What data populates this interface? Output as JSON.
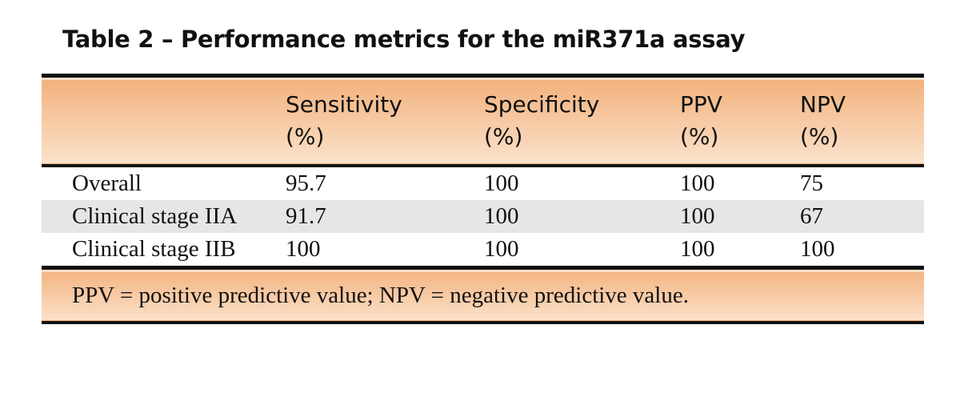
{
  "title": "Table 2 – Performance metrics for the miR371a assay",
  "table": {
    "header": [
      "Sensitivity (%)",
      "Specificity (%)",
      "PPV (%)",
      "NPV (%)"
    ],
    "rows": [
      [
        "Overall",
        95.7,
        100,
        100,
        75
      ],
      [
        "Clinical stage IIA",
        91.7,
        100,
        100,
        67
      ],
      [
        "Clinical stage IIB",
        100,
        100,
        100,
        100
      ]
    ],
    "footnote": "PPV = positive predictive value; NPV = negative predictive value."
  }
}
